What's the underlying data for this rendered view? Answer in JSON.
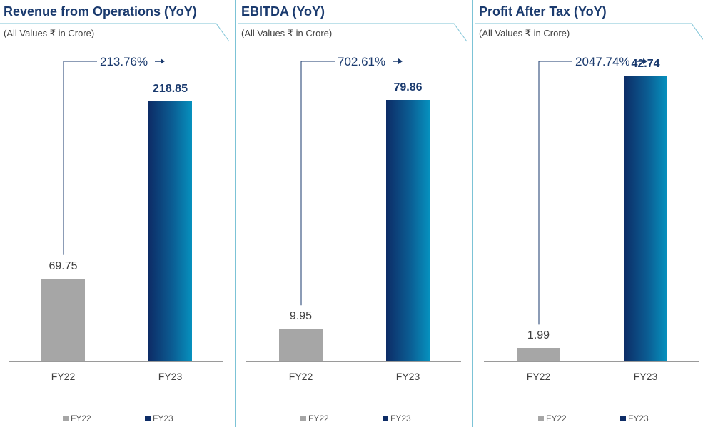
{
  "colors": {
    "fy22_bar": "#a6a6a6",
    "fy23_bar_dark": "#0d2c66",
    "fy23_bar_light": "#0691be",
    "title": "#1a3a6e",
    "accent_line": "#7cc3d6"
  },
  "icons": [
    "arrow-right-icon"
  ],
  "chart_data": [
    {
      "type": "bar",
      "title": "Revenue from Operations (YoY)",
      "subtitle": "(All Values ₹ in Crore)",
      "categories": [
        "FY22",
        "FY23"
      ],
      "values": [
        69.75,
        218.85
      ],
      "value_labels": [
        "69.75",
        "218.85"
      ],
      "growth_label": "213.76%",
      "legend": [
        "FY22",
        "FY23"
      ],
      "legend_position": "bottom",
      "ylim": [
        0,
        240
      ],
      "grid": false
    },
    {
      "type": "bar",
      "title": "EBITDA (YoY)",
      "subtitle": "(All Values ₹ in Crore)",
      "categories": [
        "FY22",
        "FY23"
      ],
      "values": [
        9.95,
        79.86
      ],
      "value_labels": [
        "9.95",
        "79.86"
      ],
      "growth_label": "702.61%",
      "legend": [
        "FY22",
        "FY23"
      ],
      "legend_position": "bottom",
      "ylim": [
        0,
        87
      ],
      "grid": false
    },
    {
      "type": "bar",
      "title": "Profit After Tax (YoY)",
      "subtitle": "(All Values ₹ in Crore)",
      "categories": [
        "FY22",
        "FY23"
      ],
      "values": [
        1.99,
        42.74
      ],
      "value_labels": [
        "1.99",
        "42.74"
      ],
      "growth_label": "2047.74%",
      "legend": [
        "FY22",
        "FY23"
      ],
      "legend_position": "bottom",
      "ylim": [
        0,
        42.74
      ],
      "grid": false
    }
  ]
}
